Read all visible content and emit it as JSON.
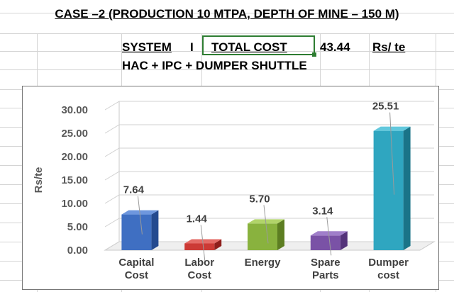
{
  "heading": {
    "title": "CASE –2 (PRODUCTION 10 MTPA, DEPTH OF MINE – 150 M)",
    "system_label": "SYSTEM",
    "system_number": "I",
    "total_label": "TOTAL COST",
    "total_value": "43.44",
    "unit": "Rs/ te",
    "system_description": "HAC + IPC + DUMPER SHUTTLE"
  },
  "colors": {
    "grid": "#d4d4d4",
    "selection": "#2e7d32"
  },
  "chart_data": {
    "type": "bar",
    "style": "3d",
    "title": "",
    "xlabel": "",
    "ylabel": "Rs/te",
    "ylim": [
      0,
      30
    ],
    "yticks": [
      "0.00",
      "5.00",
      "10.00",
      "15.00",
      "20.00",
      "25.00",
      "30.00"
    ],
    "categories": [
      [
        "Capital",
        "Cost"
      ],
      [
        "Labor",
        "Cost"
      ],
      [
        "Energy"
      ],
      [
        "Spare",
        "Parts"
      ],
      [
        "Dumper",
        "cost"
      ]
    ],
    "values": [
      7.64,
      1.44,
      5.7,
      3.14,
      25.51
    ],
    "value_labels": [
      "7.64",
      "1.44",
      "5.70",
      "3.14",
      "25.51"
    ],
    "bar_colors": [
      {
        "front": "#3f6fc2",
        "top": "#6e97de",
        "side": "#244a8f"
      },
      {
        "front": "#cc3a35",
        "top": "#e46b66",
        "side": "#8f1f1c"
      },
      {
        "front": "#89b23e",
        "top": "#b1d46a",
        "side": "#5d7e22"
      },
      {
        "front": "#7a52a6",
        "top": "#a07fca",
        "side": "#54337a"
      },
      {
        "front": "#2fa6c0",
        "top": "#62c8dd",
        "side": "#1a7488"
      }
    ]
  }
}
